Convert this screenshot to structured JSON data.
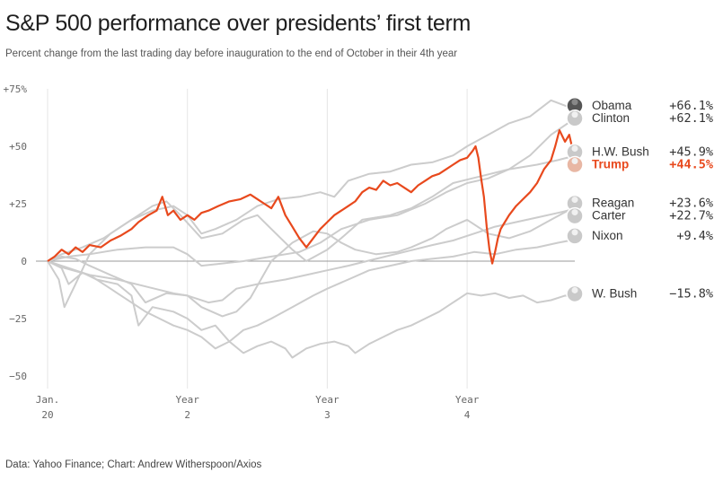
{
  "header": {
    "title": "S&P 500 performance over presidents’ first term",
    "subtitle": "Percent change from the last trading day before inauguration to the end of October in their 4th year"
  },
  "footer": {
    "source": "Data: Yahoo Finance; Chart: Andrew Witherspoon/Axios"
  },
  "colors": {
    "highlight": "#e8491d",
    "others": "#cccccc",
    "zero_line": "#999999",
    "grid": "#e6e6e6"
  },
  "chart_data": {
    "type": "line",
    "title": "S&P 500 performance over presidents’ first term",
    "x_unit": "years since inauguration",
    "xlim": [
      0,
      3.77
    ],
    "ylim": [
      -50,
      75
    ],
    "grid": "vertical",
    "y_ticks": [
      {
        "value": 75,
        "label": "+75%"
      },
      {
        "value": 50,
        "label": "+50"
      },
      {
        "value": 25,
        "label": "+25"
      },
      {
        "value": 0,
        "label": "0"
      },
      {
        "value": -25,
        "label": "−25"
      },
      {
        "value": -50,
        "label": "−50"
      }
    ],
    "x_ticks": [
      {
        "value": 0,
        "line1": "Jan.",
        "line2": "20"
      },
      {
        "value": 1,
        "line1": "Year",
        "line2": "2"
      },
      {
        "value": 2,
        "line1": "Year",
        "line2": "3"
      },
      {
        "value": 3,
        "line1": "Year",
        "line2": "4"
      }
    ],
    "series": [
      {
        "name": "Obama",
        "final_label": "+66.1%",
        "highlight": false,
        "face": "dark",
        "points": [
          [
            0,
            0
          ],
          [
            0.08,
            -8
          ],
          [
            0.12,
            -20
          ],
          [
            0.2,
            -10
          ],
          [
            0.3,
            3
          ],
          [
            0.45,
            12
          ],
          [
            0.6,
            18
          ],
          [
            0.75,
            22
          ],
          [
            0.9,
            24
          ],
          [
            1.0,
            20
          ],
          [
            1.1,
            12
          ],
          [
            1.2,
            14
          ],
          [
            1.35,
            18
          ],
          [
            1.5,
            24
          ],
          [
            1.65,
            27
          ],
          [
            1.8,
            28
          ],
          [
            1.95,
            30
          ],
          [
            2.05,
            28
          ],
          [
            2.15,
            35
          ],
          [
            2.3,
            38
          ],
          [
            2.45,
            39
          ],
          [
            2.6,
            42
          ],
          [
            2.75,
            43
          ],
          [
            2.9,
            46
          ],
          [
            3.0,
            50
          ],
          [
            3.15,
            55
          ],
          [
            3.3,
            60
          ],
          [
            3.45,
            63
          ],
          [
            3.6,
            70
          ],
          [
            3.77,
            66.1
          ]
        ]
      },
      {
        "name": "Clinton",
        "final_label": "+62.1%",
        "highlight": false,
        "face": "light",
        "points": [
          [
            0,
            0
          ],
          [
            0.15,
            2
          ],
          [
            0.3,
            3
          ],
          [
            0.5,
            5
          ],
          [
            0.7,
            6
          ],
          [
            0.9,
            6
          ],
          [
            1.0,
            3
          ],
          [
            1.1,
            -2
          ],
          [
            1.25,
            -1
          ],
          [
            1.4,
            0
          ],
          [
            1.6,
            2
          ],
          [
            1.8,
            4
          ],
          [
            1.95,
            8
          ],
          [
            2.1,
            14
          ],
          [
            2.3,
            18
          ],
          [
            2.5,
            20
          ],
          [
            2.7,
            25
          ],
          [
            2.85,
            30
          ],
          [
            3.0,
            34
          ],
          [
            3.15,
            36
          ],
          [
            3.3,
            40
          ],
          [
            3.45,
            46
          ],
          [
            3.6,
            55
          ],
          [
            3.77,
            62.1
          ]
        ]
      },
      {
        "name": "H.W. Bush",
        "final_label": "+45.9%",
        "highlight": false,
        "face": "light",
        "points": [
          [
            0,
            0
          ],
          [
            0.1,
            3
          ],
          [
            0.25,
            6
          ],
          [
            0.4,
            10
          ],
          [
            0.6,
            18
          ],
          [
            0.75,
            24
          ],
          [
            0.85,
            26
          ],
          [
            0.95,
            20
          ],
          [
            1.1,
            10
          ],
          [
            1.25,
            12
          ],
          [
            1.4,
            18
          ],
          [
            1.5,
            20
          ],
          [
            1.6,
            14
          ],
          [
            1.75,
            5
          ],
          [
            1.85,
            0
          ],
          [
            2.0,
            5
          ],
          [
            2.1,
            10
          ],
          [
            2.25,
            18
          ],
          [
            2.45,
            20
          ],
          [
            2.6,
            23
          ],
          [
            2.75,
            28
          ],
          [
            2.9,
            34
          ],
          [
            3.1,
            37
          ],
          [
            3.3,
            40
          ],
          [
            3.5,
            42
          ],
          [
            3.65,
            44
          ],
          [
            3.77,
            45.9
          ]
        ]
      },
      {
        "name": "Trump",
        "final_label": "+44.5%",
        "highlight": true,
        "face": "red",
        "points": [
          [
            0,
            0
          ],
          [
            0.05,
            2
          ],
          [
            0.1,
            5
          ],
          [
            0.15,
            3
          ],
          [
            0.2,
            6
          ],
          [
            0.25,
            4
          ],
          [
            0.3,
            7
          ],
          [
            0.38,
            6
          ],
          [
            0.45,
            9
          ],
          [
            0.52,
            11
          ],
          [
            0.6,
            14
          ],
          [
            0.65,
            17
          ],
          [
            0.72,
            20
          ],
          [
            0.78,
            22
          ],
          [
            0.82,
            28
          ],
          [
            0.86,
            20
          ],
          [
            0.9,
            22
          ],
          [
            0.95,
            18
          ],
          [
            1.0,
            20
          ],
          [
            1.05,
            18
          ],
          [
            1.1,
            21
          ],
          [
            1.15,
            22
          ],
          [
            1.22,
            24
          ],
          [
            1.3,
            26
          ],
          [
            1.38,
            27
          ],
          [
            1.45,
            29
          ],
          [
            1.5,
            27
          ],
          [
            1.55,
            25
          ],
          [
            1.6,
            23
          ],
          [
            1.65,
            28
          ],
          [
            1.7,
            20
          ],
          [
            1.75,
            15
          ],
          [
            1.8,
            10
          ],
          [
            1.85,
            6
          ],
          [
            1.9,
            10
          ],
          [
            1.95,
            14
          ],
          [
            2.0,
            17
          ],
          [
            2.05,
            20
          ],
          [
            2.1,
            22
          ],
          [
            2.15,
            24
          ],
          [
            2.2,
            26
          ],
          [
            2.25,
            30
          ],
          [
            2.3,
            32
          ],
          [
            2.35,
            31
          ],
          [
            2.4,
            35
          ],
          [
            2.45,
            33
          ],
          [
            2.5,
            34
          ],
          [
            2.55,
            32
          ],
          [
            2.6,
            30
          ],
          [
            2.65,
            33
          ],
          [
            2.7,
            35
          ],
          [
            2.75,
            37
          ],
          [
            2.8,
            38
          ],
          [
            2.85,
            40
          ],
          [
            2.9,
            42
          ],
          [
            2.95,
            44
          ],
          [
            3.0,
            45
          ],
          [
            3.04,
            48
          ],
          [
            3.06,
            50
          ],
          [
            3.08,
            45
          ],
          [
            3.1,
            36
          ],
          [
            3.12,
            28
          ],
          [
            3.14,
            15
          ],
          [
            3.16,
            5
          ],
          [
            3.18,
            -1
          ],
          [
            3.2,
            4
          ],
          [
            3.22,
            10
          ],
          [
            3.24,
            14
          ],
          [
            3.26,
            16
          ],
          [
            3.3,
            20
          ],
          [
            3.35,
            24
          ],
          [
            3.4,
            27
          ],
          [
            3.45,
            30
          ],
          [
            3.5,
            34
          ],
          [
            3.55,
            40
          ],
          [
            3.6,
            44
          ],
          [
            3.63,
            50
          ],
          [
            3.66,
            57
          ],
          [
            3.7,
            52
          ],
          [
            3.73,
            55
          ],
          [
            3.77,
            44.5
          ]
        ]
      },
      {
        "name": "Reagan",
        "final_label": "+23.6%",
        "highlight": false,
        "face": "light",
        "points": [
          [
            0,
            0
          ],
          [
            0.1,
            2
          ],
          [
            0.2,
            1
          ],
          [
            0.3,
            -2
          ],
          [
            0.45,
            -6
          ],
          [
            0.6,
            -10
          ],
          [
            0.7,
            -18
          ],
          [
            0.85,
            -14
          ],
          [
            1.0,
            -15
          ],
          [
            1.1,
            -20
          ],
          [
            1.25,
            -24
          ],
          [
            1.35,
            -22
          ],
          [
            1.45,
            -16
          ],
          [
            1.6,
            0
          ],
          [
            1.75,
            8
          ],
          [
            1.9,
            13
          ],
          [
            2.0,
            12
          ],
          [
            2.1,
            8
          ],
          [
            2.2,
            5
          ],
          [
            2.35,
            3
          ],
          [
            2.5,
            4
          ],
          [
            2.6,
            6
          ],
          [
            2.75,
            10
          ],
          [
            2.85,
            14
          ],
          [
            3.0,
            18
          ],
          [
            3.15,
            12
          ],
          [
            3.3,
            10
          ],
          [
            3.45,
            13
          ],
          [
            3.6,
            18
          ],
          [
            3.77,
            23.6
          ]
        ]
      },
      {
        "name": "Carter",
        "final_label": "+22.7%",
        "highlight": false,
        "face": "light",
        "points": [
          [
            0,
            0
          ],
          [
            0.12,
            -3
          ],
          [
            0.3,
            -6
          ],
          [
            0.5,
            -8
          ],
          [
            0.7,
            -11
          ],
          [
            0.9,
            -14
          ],
          [
            1.0,
            -15
          ],
          [
            1.15,
            -18
          ],
          [
            1.25,
            -17
          ],
          [
            1.35,
            -12
          ],
          [
            1.5,
            -10
          ],
          [
            1.7,
            -8
          ],
          [
            1.85,
            -6
          ],
          [
            2.0,
            -4
          ],
          [
            2.15,
            -2
          ],
          [
            2.35,
            1
          ],
          [
            2.55,
            4
          ],
          [
            2.75,
            7
          ],
          [
            2.9,
            9
          ],
          [
            3.05,
            12
          ],
          [
            3.2,
            15
          ],
          [
            3.35,
            17
          ],
          [
            3.5,
            19
          ],
          [
            3.65,
            21
          ],
          [
            3.77,
            22.7
          ]
        ]
      },
      {
        "name": "Nixon",
        "final_label": "+9.4%",
        "highlight": false,
        "face": "light",
        "points": [
          [
            0,
            0
          ],
          [
            0.15,
            -3
          ],
          [
            0.3,
            -6
          ],
          [
            0.45,
            -12
          ],
          [
            0.6,
            -18
          ],
          [
            0.7,
            -22
          ],
          [
            0.8,
            -25
          ],
          [
            0.9,
            -28
          ],
          [
            1.0,
            -30
          ],
          [
            1.1,
            -33
          ],
          [
            1.2,
            -38
          ],
          [
            1.3,
            -35
          ],
          [
            1.4,
            -30
          ],
          [
            1.5,
            -28
          ],
          [
            1.6,
            -25
          ],
          [
            1.75,
            -20
          ],
          [
            1.9,
            -15
          ],
          [
            2.0,
            -12
          ],
          [
            2.15,
            -8
          ],
          [
            2.3,
            -4
          ],
          [
            2.45,
            -2
          ],
          [
            2.6,
            0
          ],
          [
            2.75,
            1
          ],
          [
            2.9,
            2
          ],
          [
            3.05,
            4
          ],
          [
            3.2,
            3
          ],
          [
            3.35,
            5
          ],
          [
            3.5,
            6
          ],
          [
            3.65,
            8
          ],
          [
            3.77,
            9.4
          ]
        ]
      },
      {
        "name": "W. Bush",
        "final_label": "−15.8%",
        "highlight": false,
        "face": "light",
        "points": [
          [
            0,
            0
          ],
          [
            0.1,
            -3
          ],
          [
            0.15,
            -10
          ],
          [
            0.25,
            -5
          ],
          [
            0.35,
            -8
          ],
          [
            0.5,
            -10
          ],
          [
            0.6,
            -15
          ],
          [
            0.65,
            -28
          ],
          [
            0.75,
            -20
          ],
          [
            0.9,
            -22
          ],
          [
            1.0,
            -25
          ],
          [
            1.1,
            -30
          ],
          [
            1.2,
            -28
          ],
          [
            1.3,
            -35
          ],
          [
            1.4,
            -40
          ],
          [
            1.5,
            -37
          ],
          [
            1.6,
            -35
          ],
          [
            1.7,
            -38
          ],
          [
            1.75,
            -42
          ],
          [
            1.85,
            -38
          ],
          [
            1.95,
            -36
          ],
          [
            2.05,
            -35
          ],
          [
            2.15,
            -37
          ],
          [
            2.2,
            -40
          ],
          [
            2.3,
            -36
          ],
          [
            2.4,
            -33
          ],
          [
            2.5,
            -30
          ],
          [
            2.6,
            -28
          ],
          [
            2.7,
            -25
          ],
          [
            2.8,
            -22
          ],
          [
            2.9,
            -18
          ],
          [
            3.0,
            -14
          ],
          [
            3.1,
            -15
          ],
          [
            3.2,
            -14
          ],
          [
            3.3,
            -16
          ],
          [
            3.4,
            -15
          ],
          [
            3.5,
            -18
          ],
          [
            3.6,
            -17
          ],
          [
            3.7,
            -15
          ],
          [
            3.77,
            -15.8
          ]
        ]
      }
    ]
  }
}
